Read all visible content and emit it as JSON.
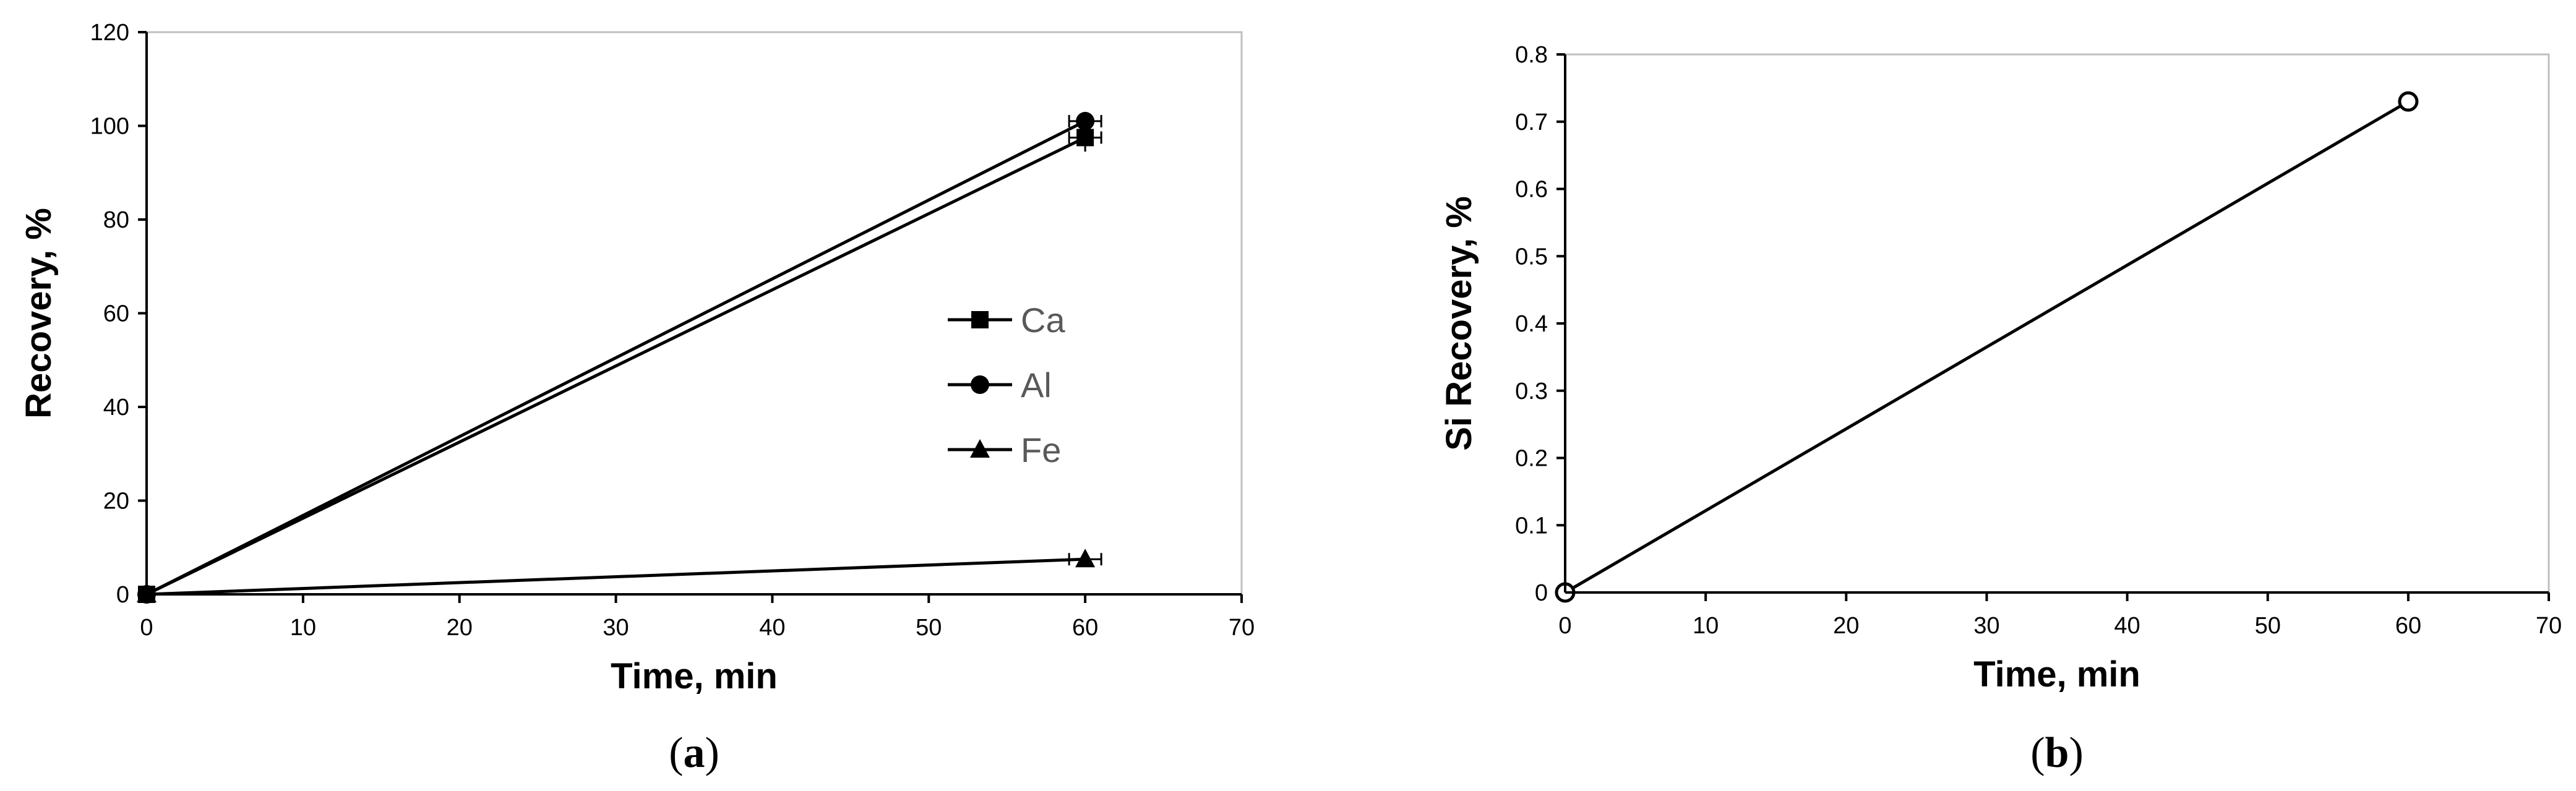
{
  "chart_data": [
    {
      "type": "line",
      "panel_label": "a",
      "xlabel": "Time, min",
      "ylabel": "Recovery, %",
      "xlim": [
        0,
        70
      ],
      "ylim": [
        0,
        120
      ],
      "x_ticks": [
        "0",
        "10",
        "20",
        "30",
        "40",
        "50",
        "60",
        "70"
      ],
      "y_ticks": [
        "0",
        "20",
        "40",
        "60",
        "80",
        "100",
        "120"
      ],
      "grid": false,
      "legend_position": "right-middle",
      "series": [
        {
          "name": "Ca",
          "marker": "square",
          "x": [
            0,
            60
          ],
          "y": [
            0,
            97.5
          ],
          "error": [
            0,
            3
          ]
        },
        {
          "name": "Al",
          "marker": "circle",
          "x": [
            0,
            60
          ],
          "y": [
            0,
            101
          ],
          "error": [
            0,
            1.5
          ]
        },
        {
          "name": "Fe",
          "marker": "triangle",
          "x": [
            0,
            60
          ],
          "y": [
            0,
            7.5
          ],
          "error": [
            0,
            1
          ]
        }
      ]
    },
    {
      "type": "line",
      "panel_label": "b",
      "xlabel": "Time, min",
      "ylabel": "Si Recovery, %",
      "xlim": [
        0,
        70
      ],
      "ylim": [
        0,
        0.8
      ],
      "x_ticks": [
        "0",
        "10",
        "20",
        "30",
        "40",
        "50",
        "60",
        "70"
      ],
      "y_ticks": [
        "0",
        "0.1",
        "0.2",
        "0.3",
        "0.4",
        "0.5",
        "0.6",
        "0.7",
        "0.8"
      ],
      "grid": false,
      "series": [
        {
          "marker": "open-circle",
          "x": [
            0,
            60
          ],
          "y": [
            0,
            0.73
          ]
        }
      ]
    }
  ],
  "colors": {
    "line": "#000000",
    "frame": "#bfbfbf",
    "legend_text": "#595959"
  }
}
